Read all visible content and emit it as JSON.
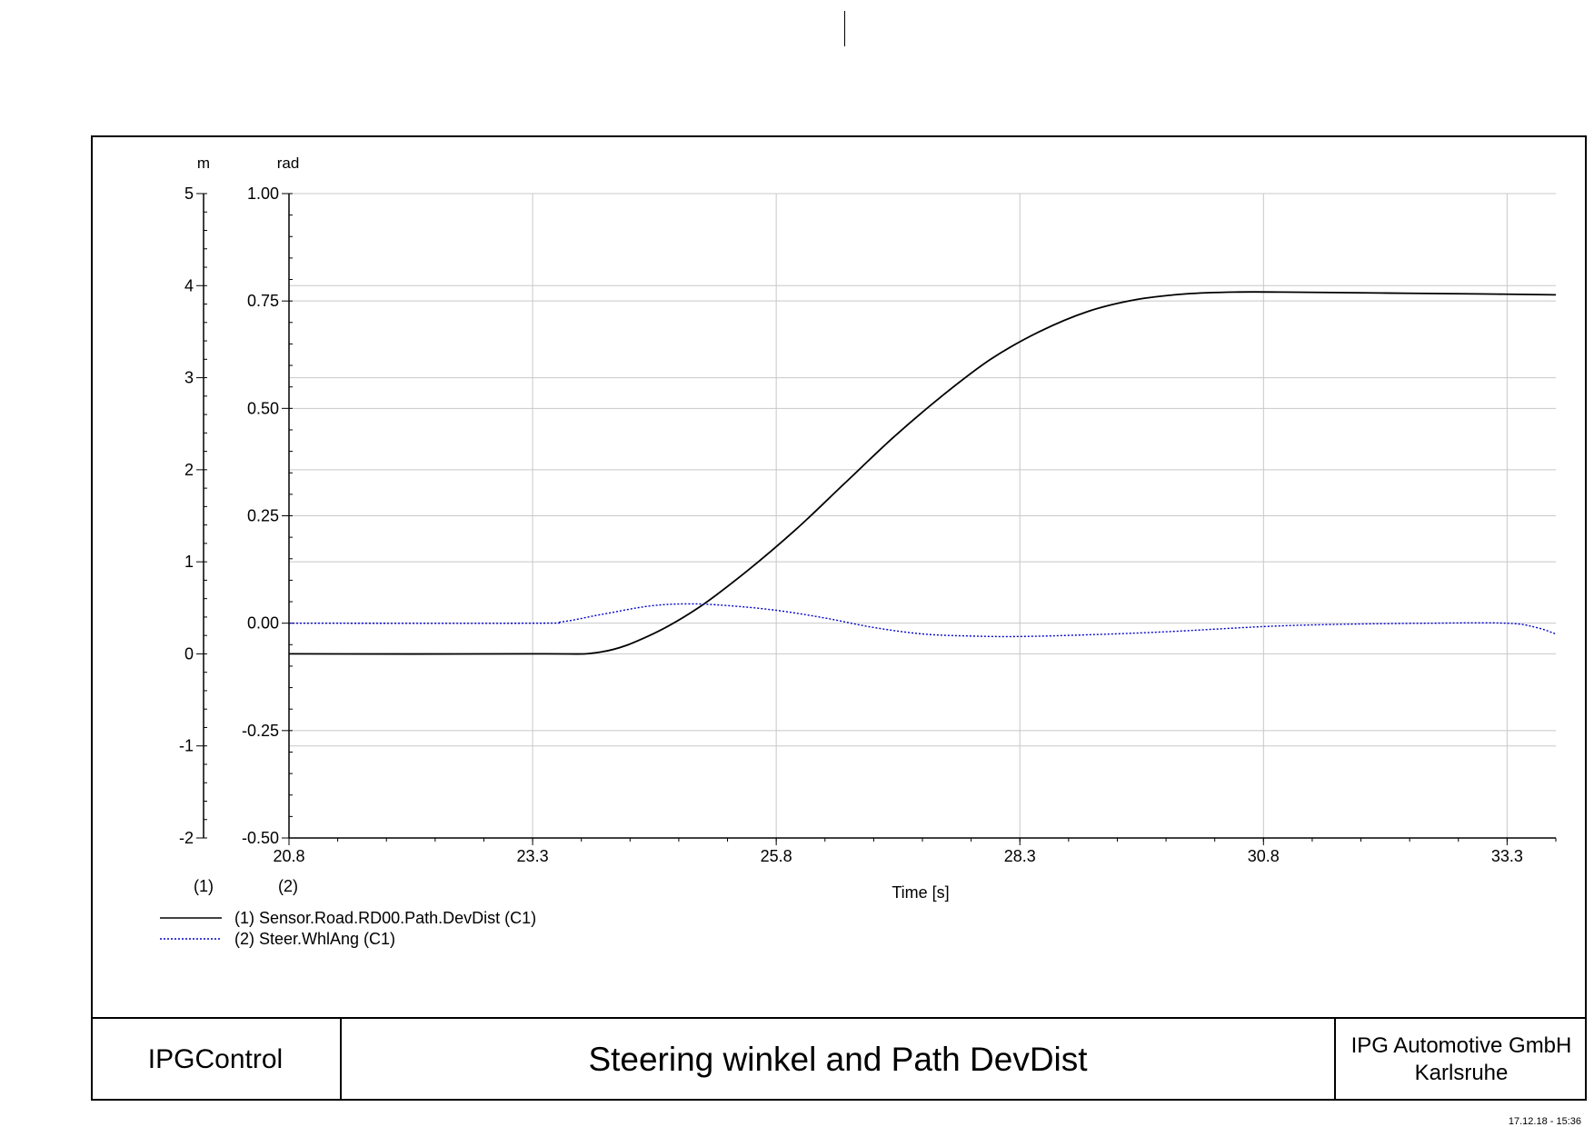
{
  "chart_data": {
    "type": "line",
    "x_label": "Time [s]",
    "x_ticks": [
      "20.8",
      "23.3",
      "25.8",
      "28.3",
      "30.8",
      "33.3"
    ],
    "x_range": [
      20.8,
      33.8
    ],
    "y_axes": [
      {
        "id": "1",
        "unit": "m",
        "label": "(1)",
        "range": [
          -2,
          5
        ],
        "ticks": [
          "5",
          "4",
          "3",
          "2",
          "1",
          "0",
          "-1",
          "-2"
        ]
      },
      {
        "id": "2",
        "unit": "rad",
        "label": "(2)",
        "range": [
          -0.5,
          1.0
        ],
        "ticks": [
          "1.00",
          "0.75",
          "0.50",
          "0.25",
          "0.00",
          "-0.25",
          "-0.50"
        ]
      }
    ],
    "grid": true,
    "series": [
      {
        "name": "(1) Sensor.Road.RD00.Path.DevDist (C1)",
        "axis": "1",
        "style": "solid",
        "color": "#000000",
        "x": [
          20.8,
          23.3,
          24.0,
          24.5,
          25.0,
          25.5,
          26.0,
          26.5,
          27.0,
          27.5,
          28.0,
          28.5,
          29.0,
          29.5,
          30.0,
          30.5,
          31.0,
          32.0,
          33.0,
          33.8
        ],
        "y": [
          0.0,
          0.0,
          0.02,
          0.2,
          0.5,
          0.9,
          1.35,
          1.85,
          2.35,
          2.8,
          3.2,
          3.5,
          3.72,
          3.85,
          3.91,
          3.93,
          3.93,
          3.92,
          3.91,
          3.9
        ]
      },
      {
        "name": "(2) Steer.WhlAng (C1)",
        "axis": "2",
        "style": "dotted",
        "color": "#0000cc",
        "x": [
          20.8,
          23.3,
          23.6,
          24.0,
          24.5,
          24.9,
          25.3,
          25.8,
          26.3,
          26.8,
          27.3,
          27.8,
          28.3,
          29.0,
          29.8,
          30.8,
          31.5,
          32.5,
          33.3,
          33.6,
          33.8
        ],
        "y": [
          0.0,
          0.0,
          0.003,
          0.02,
          0.04,
          0.045,
          0.041,
          0.03,
          0.012,
          -0.01,
          -0.025,
          -0.03,
          -0.031,
          -0.027,
          -0.02,
          -0.008,
          -0.003,
          0.0,
          0.0,
          -0.01,
          -0.025
        ]
      }
    ]
  },
  "footer": {
    "left": "IPGControl",
    "title": "Steering winkel and Path DevDist",
    "company": "IPG Automotive GmbH",
    "city": "Karlsruhe"
  },
  "timestamp": "17.12.18 - 15:36"
}
